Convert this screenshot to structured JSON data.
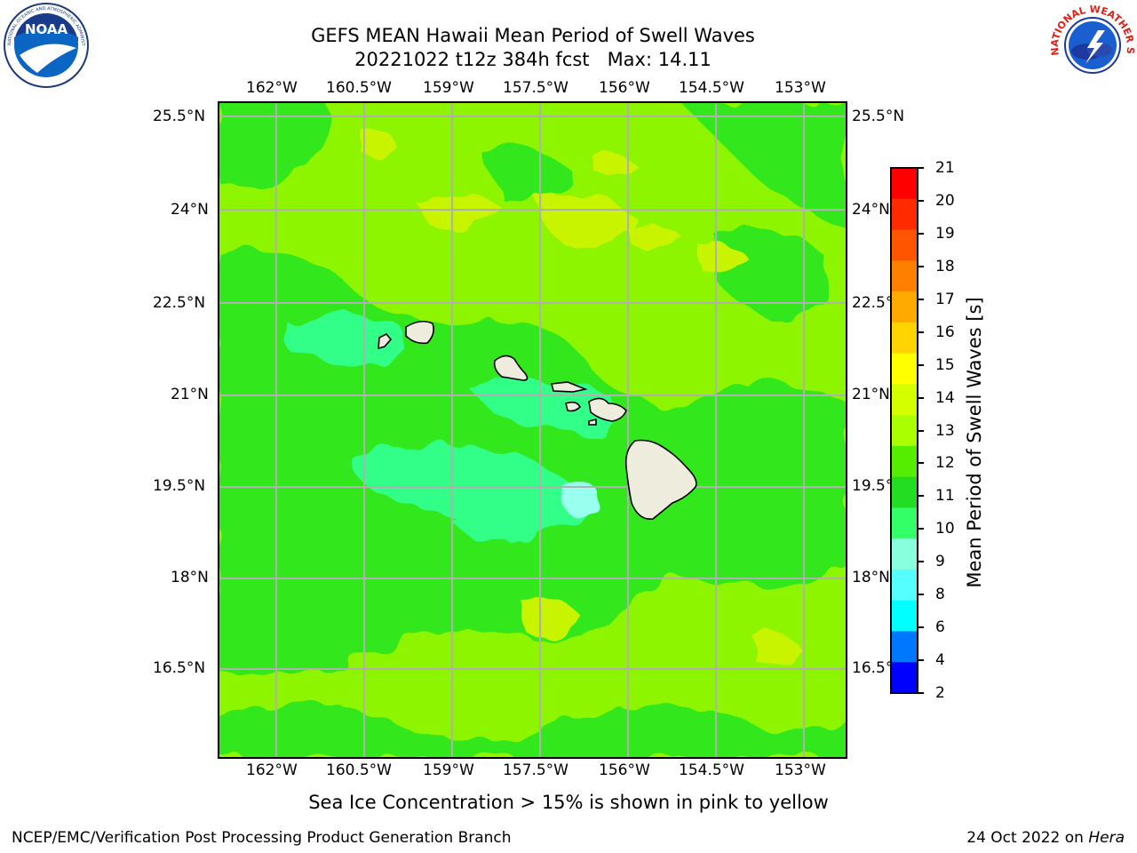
{
  "header": {
    "title_line1": "GEFS MEAN Hawaii Mean Period of Swell Waves",
    "title_line2": "20221022 t12z 384h fcst   Max: 14.11"
  },
  "logos": {
    "left": {
      "name": "noaa-logo",
      "text": "NOAA",
      "ring_text": "NATIONAL OCEANIC AND ATMOSPHERIC ADMINISTRATION · U.S. DEPARTMENT OF COMMERCE"
    },
    "right": {
      "name": "nws-logo",
      "ring_text": "NATIONAL WEATHER SERVICE"
    }
  },
  "map": {
    "lon_ticks": [
      "162°W",
      "160.5°W",
      "159°W",
      "157.5°W",
      "156°W",
      "154.5°W",
      "153°W"
    ],
    "lat_ticks": [
      "25.5°N",
      "24°N",
      "22.5°N",
      "21°N",
      "19.5°N",
      "18°N",
      "16.5°N"
    ],
    "lon_range": [
      -163,
      -152.3
    ],
    "lat_range": [
      15,
      25.7
    ],
    "grid": true,
    "colors": {
      "land": "#eeecdc",
      "coast": "#000000",
      "grid": "#b0b0b0",
      "base": "#8ef500",
      "green": "#30e81a",
      "yellow": "#c8f400",
      "aqua": "#33ff88",
      "cyan": "#99ffee"
    }
  },
  "colorbar": {
    "label": "Mean Period of Swell Waves [s]",
    "ticks": [
      "21",
      "20",
      "19",
      "18",
      "17",
      "16",
      "15",
      "14",
      "13",
      "12",
      "11",
      "10",
      "9",
      "8",
      "6",
      "4",
      "2"
    ],
    "colors_top_to_bottom": [
      "#ff0000",
      "#ff2a00",
      "#ff5500",
      "#ff7f00",
      "#ffaa00",
      "#ffd400",
      "#ffff00",
      "#d4ff00",
      "#aaff00",
      "#55ee00",
      "#22dd22",
      "#33ff66",
      "#88ffdd",
      "#55ffff",
      "#00ffff",
      "#0077ff",
      "#0000ff"
    ]
  },
  "caption": "Sea Ice Concentration > 15% is shown in pink to yellow",
  "footer": {
    "left": "NCEP/EMC/Verification Post Processing Product Generation Branch",
    "right_date": "24 Oct 2022 on ",
    "right_host": "Hera"
  }
}
